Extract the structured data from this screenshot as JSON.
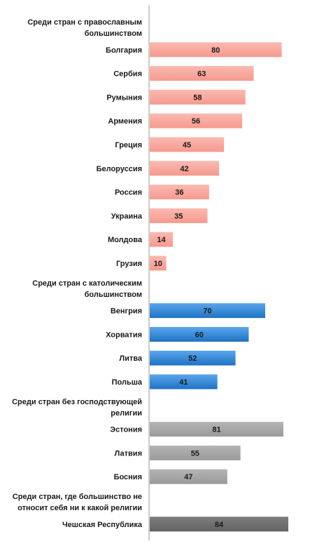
{
  "chart_data": {
    "type": "bar",
    "orientation": "horizontal",
    "xlim": [
      0,
      84
    ],
    "grid": false,
    "legend": "none",
    "rows": [
      {
        "kind": "header",
        "lines": [
          "Среди стран  с православным",
          "большинством"
        ]
      },
      {
        "kind": "bar",
        "label": "Болгария",
        "value": 80,
        "group": "orthodox"
      },
      {
        "kind": "bar",
        "label": "Сербия",
        "value": 63,
        "group": "orthodox"
      },
      {
        "kind": "bar",
        "label": "Румыния",
        "value": 58,
        "group": "orthodox"
      },
      {
        "kind": "bar",
        "label": "Армения",
        "value": 56,
        "group": "orthodox"
      },
      {
        "kind": "bar",
        "label": "Греция",
        "value": 45,
        "group": "orthodox"
      },
      {
        "kind": "bar",
        "label": "Белоруссия",
        "value": 42,
        "group": "orthodox"
      },
      {
        "kind": "bar",
        "label": "Россия",
        "value": 36,
        "group": "orthodox"
      },
      {
        "kind": "bar",
        "label": "Украина",
        "value": 35,
        "group": "orthodox"
      },
      {
        "kind": "bar",
        "label": "Молдова",
        "value": 14,
        "group": "orthodox"
      },
      {
        "kind": "bar",
        "label": "Грузия",
        "value": 10,
        "group": "orthodox"
      },
      {
        "kind": "header",
        "lines": [
          "Среди стран  с католическим",
          "большинством"
        ]
      },
      {
        "kind": "bar",
        "label": "Венгрия",
        "value": 70,
        "group": "catholic"
      },
      {
        "kind": "bar",
        "label": "Хорватия",
        "value": 60,
        "group": "catholic"
      },
      {
        "kind": "bar",
        "label": "Литва",
        "value": 52,
        "group": "catholic"
      },
      {
        "kind": "bar",
        "label": "Польша",
        "value": 41,
        "group": "catholic"
      },
      {
        "kind": "header",
        "lines": [
          "Среди стран  без господствующей",
          "религии"
        ]
      },
      {
        "kind": "bar",
        "label": "Эстония",
        "value": 81,
        "group": "none_dominant"
      },
      {
        "kind": "bar",
        "label": "Латвия",
        "value": 55,
        "group": "none_dominant"
      },
      {
        "kind": "bar",
        "label": "Босния",
        "value": 47,
        "group": "none_dominant"
      },
      {
        "kind": "header",
        "lines": [
          "Среди стран, где большинство  не",
          "относит себя ни к какой  религии"
        ]
      },
      {
        "kind": "bar",
        "label": "Чешская  Республика",
        "value": 84,
        "group": "unaffiliated"
      }
    ],
    "colors": {
      "orthodox": "#f8a69c",
      "catholic": "#2f86d8",
      "none_dominant": "#a6a6a6",
      "unaffiliated": "#6f6f6f",
      "axis": "#9a9a9a"
    }
  }
}
